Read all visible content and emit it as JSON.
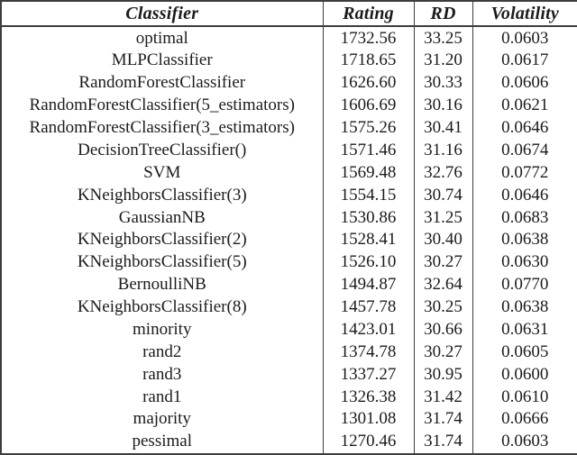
{
  "table": {
    "columns": [
      {
        "key": "classifier",
        "label": "Classifier"
      },
      {
        "key": "rating",
        "label": "Rating"
      },
      {
        "key": "rd",
        "label": "RD"
      },
      {
        "key": "volatility",
        "label": "Volatility"
      }
    ],
    "rows": [
      [
        "optimal",
        "1732.56",
        "33.25",
        "0.0603"
      ],
      [
        "MLPClassifier",
        "1718.65",
        "31.20",
        "0.0617"
      ],
      [
        "RandomForestClassifier",
        "1626.60",
        "30.33",
        "0.0606"
      ],
      [
        "RandomForestClassifier(5_estimators)",
        "1606.69",
        "30.16",
        "0.0621"
      ],
      [
        "RandomForestClassifier(3_estimators)",
        "1575.26",
        "30.41",
        "0.0646"
      ],
      [
        "DecisionTreeClassifier()",
        "1571.46",
        "31.16",
        "0.0674"
      ],
      [
        "SVM",
        "1569.48",
        "32.76",
        "0.0772"
      ],
      [
        "KNeighborsClassifier(3)",
        "1554.15",
        "30.74",
        "0.0646"
      ],
      [
        "GaussianNB",
        "1530.86",
        "31.25",
        "0.0683"
      ],
      [
        "KNeighborsClassifier(2)",
        "1528.41",
        "30.40",
        "0.0638"
      ],
      [
        "KNeighborsClassifier(5)",
        "1526.10",
        "30.27",
        "0.0630"
      ],
      [
        "BernoulliNB",
        "1494.87",
        "32.64",
        "0.0770"
      ],
      [
        "KNeighborsClassifier(8)",
        "1457.78",
        "30.25",
        "0.0638"
      ],
      [
        "minority",
        "1423.01",
        "30.66",
        "0.0631"
      ],
      [
        "rand2",
        "1374.78",
        "30.27",
        "0.0605"
      ],
      [
        "rand3",
        "1337.27",
        "30.95",
        "0.0600"
      ],
      [
        "rand1",
        "1326.38",
        "31.42",
        "0.0610"
      ],
      [
        "majority",
        "1301.08",
        "31.74",
        "0.0666"
      ],
      [
        "pessimal",
        "1270.46",
        "31.74",
        "0.0603"
      ]
    ],
    "colors": {
      "border": "#3d3d3d",
      "text": "#1b1b1b",
      "background": "#ffffff"
    }
  }
}
